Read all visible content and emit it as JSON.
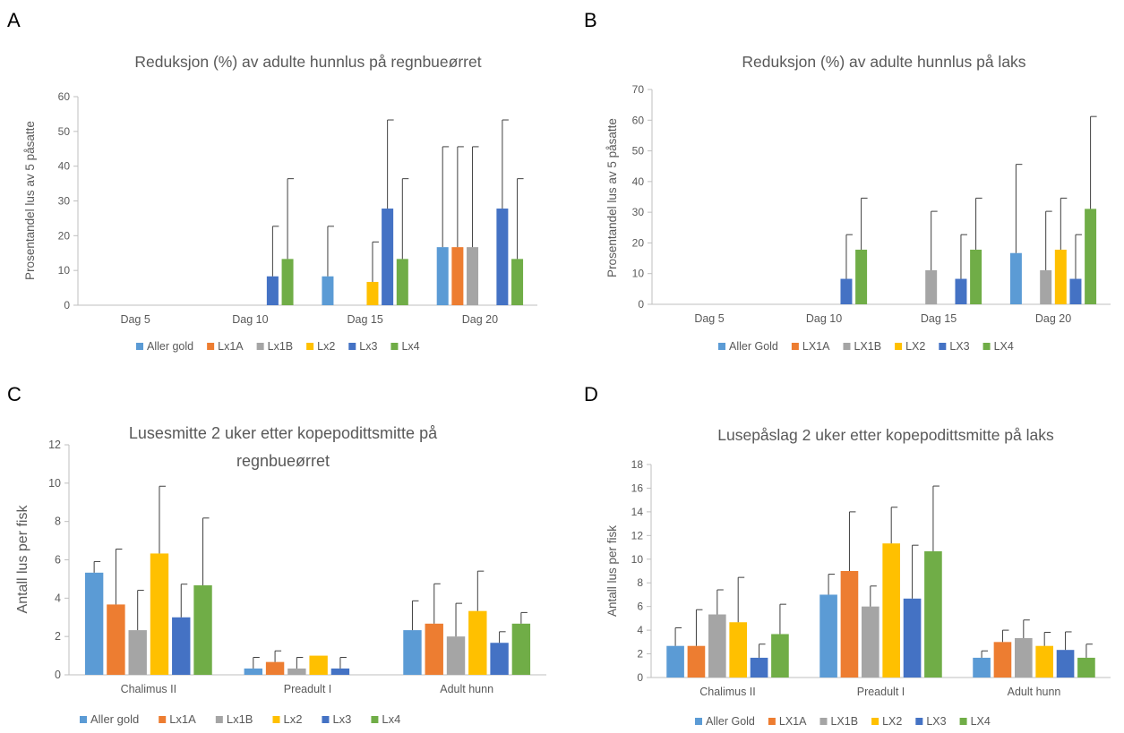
{
  "panels": [
    {
      "letter": "A"
    },
    {
      "letter": "B"
    },
    {
      "letter": "C"
    },
    {
      "letter": "D"
    }
  ],
  "colors": [
    "#5b9bd5",
    "#ed7d31",
    "#a5a5a5",
    "#ffc000",
    "#4472c4",
    "#70ad47"
  ],
  "chart_data": [
    {
      "type": "bar",
      "title": "Reduksjon (%) av adulte hunnlus på regnbueørret",
      "xlabel": "",
      "ylabel": "Prosentandel lus av 5 påsatte",
      "ylim": [
        0,
        60
      ],
      "yticks": [
        "0",
        "10",
        "20",
        "30",
        "40",
        "50",
        "60"
      ],
      "categories": [
        "Dag 5",
        "Dag 10",
        "Dag 15",
        "Dag 20"
      ],
      "legend_position": "bottom",
      "grid": false,
      "series": [
        {
          "name": "Aller gold",
          "values": [
            0,
            0,
            8.3,
            16.7
          ],
          "errors": [
            0,
            0,
            14.4,
            28.9
          ]
        },
        {
          "name": "Lx1A",
          "values": [
            0,
            0,
            0,
            16.7
          ],
          "errors": [
            0,
            0,
            0,
            28.9
          ]
        },
        {
          "name": "Lx1B",
          "values": [
            0,
            0,
            0,
            16.7
          ],
          "errors": [
            0,
            0,
            0,
            28.9
          ]
        },
        {
          "name": "Lx2",
          "values": [
            0,
            0,
            6.7,
            0
          ],
          "errors": [
            0,
            0,
            11.5,
            0
          ]
        },
        {
          "name": "Lx3",
          "values": [
            0,
            8.3,
            27.8,
            27.8
          ],
          "errors": [
            0,
            14.4,
            25.5,
            25.5
          ]
        },
        {
          "name": "Lx4",
          "values": [
            0,
            13.3,
            13.3,
            13.3
          ],
          "errors": [
            0,
            23.1,
            23.1,
            23.1
          ]
        }
      ]
    },
    {
      "type": "bar",
      "title": "Reduksjon (%) av adulte hunnlus på laks",
      "xlabel": "",
      "ylabel": "Prosentandel lus av 5 påsatte",
      "ylim": [
        0,
        70
      ],
      "yticks": [
        "0",
        "10",
        "20",
        "30",
        "40",
        "50",
        "60",
        "70"
      ],
      "categories": [
        "Dag 5",
        "Dag 10",
        "Dag 15",
        "Dag 20"
      ],
      "legend_position": "bottom",
      "grid": false,
      "series": [
        {
          "name": "Aller Gold",
          "values": [
            0,
            0,
            0,
            16.7
          ],
          "errors": [
            0,
            0,
            0,
            28.9
          ]
        },
        {
          "name": "LX1A",
          "values": [
            0,
            0,
            0,
            0
          ],
          "errors": [
            0,
            0,
            0,
            0
          ]
        },
        {
          "name": "LX1B",
          "values": [
            0,
            0,
            11.1,
            11.1
          ],
          "errors": [
            0,
            0,
            19.2,
            19.2
          ]
        },
        {
          "name": "LX2",
          "values": [
            0,
            0,
            0,
            17.8
          ],
          "errors": [
            0,
            0,
            0,
            16.8
          ]
        },
        {
          "name": "LX3",
          "values": [
            0,
            8.3,
            8.3,
            8.3
          ],
          "errors": [
            0,
            14.4,
            14.4,
            14.4
          ]
        },
        {
          "name": "LX4",
          "values": [
            0,
            17.8,
            17.8,
            31.1
          ],
          "errors": [
            0,
            16.8,
            16.8,
            30.1
          ]
        }
      ]
    },
    {
      "type": "bar",
      "title": "Lusesmitte 2 uker etter kopepodittsmitte på regnbueørret",
      "xlabel": "",
      "ylabel": "Antall lus per fisk",
      "ylim": [
        0,
        12
      ],
      "yticks": [
        "0",
        "2",
        "4",
        "6",
        "8",
        "10",
        "12"
      ],
      "categories": [
        "Chalimus II",
        "Preadult I",
        "Adult hunn"
      ],
      "legend_position": "bottom",
      "grid": false,
      "series": [
        {
          "name": "Aller gold",
          "values": [
            5.33,
            0.33,
            2.33
          ],
          "errors": [
            0.58,
            0.58,
            1.53
          ]
        },
        {
          "name": "Lx1A",
          "values": [
            3.67,
            0.67,
            2.67
          ],
          "errors": [
            2.89,
            0.58,
            2.08
          ]
        },
        {
          "name": "Lx1B",
          "values": [
            2.33,
            0.33,
            2.0
          ],
          "errors": [
            2.08,
            0.58,
            1.73
          ]
        },
        {
          "name": "Lx2",
          "values": [
            6.33,
            1.0,
            3.33
          ],
          "errors": [
            3.51,
            0,
            2.08
          ]
        },
        {
          "name": "Lx3",
          "values": [
            3.0,
            0.33,
            1.67
          ],
          "errors": [
            1.73,
            0.58,
            0.58
          ]
        },
        {
          "name": "Lx4",
          "values": [
            4.67,
            0,
            2.67
          ],
          "errors": [
            3.51,
            0,
            0.58
          ]
        }
      ]
    },
    {
      "type": "bar",
      "title": "Lusepåslag 2 uker etter kopepodittsmitte på laks",
      "xlabel": "",
      "ylabel": "Antall lus per fisk",
      "ylim": [
        0,
        18
      ],
      "yticks": [
        "0",
        "2",
        "4",
        "6",
        "8",
        "10",
        "12",
        "14",
        "16",
        "18"
      ],
      "categories": [
        "Chalimus II",
        "Preadult I",
        "Adult hunn"
      ],
      "legend_position": "bottom",
      "grid": false,
      "series": [
        {
          "name": "Aller Gold",
          "values": [
            2.67,
            7.0,
            1.67
          ],
          "errors": [
            1.53,
            1.73,
            0.58
          ]
        },
        {
          "name": "LX1A",
          "values": [
            2.67,
            9.0,
            3.0
          ],
          "errors": [
            3.06,
            5.0,
            1.0
          ]
        },
        {
          "name": "LX1B",
          "values": [
            5.33,
            6.0,
            3.33
          ],
          "errors": [
            2.08,
            1.73,
            1.53
          ]
        },
        {
          "name": "LX2",
          "values": [
            4.67,
            11.33,
            2.67
          ],
          "errors": [
            3.79,
            3.06,
            1.15
          ]
        },
        {
          "name": "LX3",
          "values": [
            1.67,
            6.67,
            2.33
          ],
          "errors": [
            1.15,
            4.51,
            1.53
          ]
        },
        {
          "name": "LX4",
          "values": [
            3.67,
            10.67,
            1.67
          ],
          "errors": [
            2.52,
            5.51,
            1.15
          ]
        }
      ]
    }
  ]
}
